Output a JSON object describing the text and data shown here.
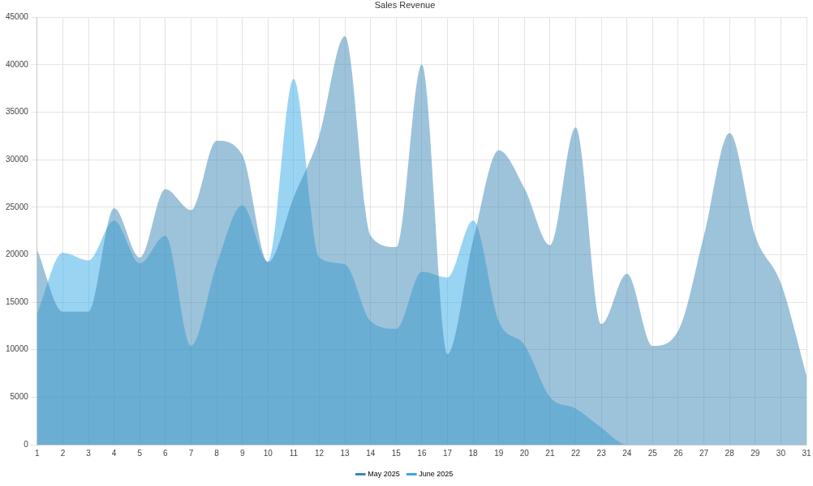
{
  "chart_data": {
    "type": "area",
    "title": "Sales Revenue",
    "categories": [
      "1",
      "2",
      "3",
      "4",
      "5",
      "6",
      "7",
      "8",
      "9",
      "10",
      "11",
      "12",
      "13",
      "14",
      "15",
      "16",
      "17",
      "18",
      "19",
      "20",
      "21",
      "22",
      "23",
      "24",
      "25",
      "26",
      "27",
      "28",
      "29",
      "30",
      "31"
    ],
    "series": [
      {
        "name": "May 2025",
        "color": "#3c88b5",
        "values": [
          20500,
          14000,
          14000,
          24900,
          19700,
          26900,
          24700,
          32000,
          30500,
          19200,
          26000,
          32500,
          43000,
          22000,
          20800,
          40000,
          9500,
          21500,
          31000,
          27000,
          21000,
          33400,
          12700,
          18000,
          10400,
          12000,
          22000,
          32800,
          22000,
          17000,
          7300
        ]
      },
      {
        "name": "June 2025",
        "color": "#36a9e8",
        "values": [
          13800,
          20200,
          19400,
          23600,
          19100,
          22000,
          10400,
          19000,
          25200,
          19300,
          38500,
          19700,
          19000,
          13000,
          12200,
          18200,
          17600,
          23600,
          13000,
          10500,
          5000,
          3800,
          1800,
          0,
          0,
          0,
          0,
          0,
          0,
          0,
          null
        ]
      }
    ],
    "ylim": [
      0,
      45000
    ],
    "yticks": [
      0,
      5000,
      10000,
      15000,
      20000,
      25000,
      30000,
      35000,
      40000,
      45000
    ],
    "grid": true,
    "legend": "bottom",
    "marker": "none"
  }
}
